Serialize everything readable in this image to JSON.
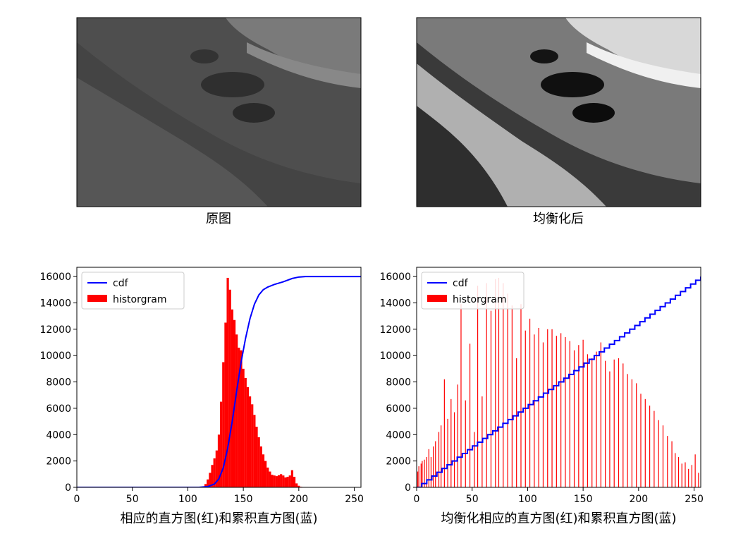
{
  "images": [
    {
      "caption": "原图"
    },
    {
      "caption": "均衡化后"
    }
  ],
  "chart_data": [
    {
      "type": "bar",
      "xlabel": "相应的直方图(红)和累积直方图(蓝)",
      "ylabel": "",
      "xlim": [
        0,
        256
      ],
      "ylim": [
        0,
        16700
      ],
      "xticks": [
        0,
        50,
        100,
        150,
        200,
        250
      ],
      "yticks": [
        0,
        2000,
        4000,
        6000,
        8000,
        10000,
        12000,
        14000,
        16000
      ],
      "grid": false,
      "legend_position": "top-left",
      "series": [
        {
          "name": "cdf",
          "kind": "line",
          "color": "#0000ff",
          "x": [
            0,
            110,
            118,
            124,
            128,
            132,
            136,
            140,
            144,
            148,
            152,
            156,
            160,
            164,
            168,
            172,
            178,
            186,
            194,
            200,
            206,
            256
          ],
          "y": [
            0,
            0,
            60,
            250,
            650,
            1500,
            3000,
            5000,
            7300,
            9500,
            11300,
            12800,
            13900,
            14600,
            15000,
            15200,
            15400,
            15600,
            15850,
            15960,
            16000,
            16000
          ]
        },
        {
          "name": "historgram",
          "kind": "bar",
          "color": "#ff0000",
          "x": [
            114,
            116,
            118,
            120,
            122,
            124,
            126,
            128,
            130,
            132,
            134,
            136,
            138,
            140,
            142,
            144,
            146,
            148,
            150,
            152,
            154,
            156,
            158,
            160,
            162,
            164,
            166,
            168,
            170,
            172,
            174,
            176,
            178,
            180,
            182,
            184,
            186,
            188,
            190,
            192,
            194,
            196,
            198,
            200,
            202,
            204,
            206
          ],
          "y": [
            80,
            250,
            600,
            1100,
            1700,
            2200,
            2800,
            4000,
            6500,
            9500,
            12500,
            15900,
            15000,
            13500,
            12700,
            11600,
            10600,
            10400,
            9000,
            8300,
            7600,
            6900,
            6300,
            5500,
            4600,
            3800,
            3100,
            2500,
            2000,
            1500,
            1200,
            950,
            900,
            850,
            920,
            1000,
            900,
            750,
            800,
            900,
            1300,
            800,
            300,
            120,
            40,
            15,
            5
          ]
        }
      ]
    },
    {
      "type": "bar",
      "xlabel": "均衡化相应的直方图(红)和累积直方图(蓝)",
      "ylabel": "",
      "xlim": [
        0,
        256
      ],
      "ylim": [
        0,
        16700
      ],
      "xticks": [
        0,
        50,
        100,
        150,
        200,
        250
      ],
      "yticks": [
        0,
        2000,
        4000,
        6000,
        8000,
        10000,
        12000,
        14000,
        16000
      ],
      "grid": false,
      "legend_position": "top-left",
      "series": [
        {
          "name": "cdf",
          "kind": "line",
          "color": "#0000ff",
          "x": [
            0,
            256
          ],
          "y": [
            0,
            16000
          ]
        },
        {
          "name": "historgram",
          "kind": "bar",
          "color": "#ff0000",
          "x": [
            1,
            2,
            4,
            5,
            7,
            9,
            11,
            13,
            15,
            17,
            20,
            22,
            25,
            28,
            31,
            34,
            37,
            40,
            44,
            48,
            52,
            55,
            59,
            63,
            67,
            71,
            74,
            78,
            82,
            86,
            90,
            94,
            98,
            102,
            106,
            110,
            114,
            118,
            122,
            126,
            130,
            134,
            138,
            142,
            146,
            150,
            154,
            158,
            162,
            166,
            170,
            174,
            178,
            182,
            186,
            190,
            194,
            198,
            202,
            206,
            210,
            214,
            218,
            222,
            226,
            230,
            233,
            236,
            239,
            242,
            245,
            248,
            251,
            254
          ],
          "y": [
            1200,
            1600,
            1800,
            2000,
            2100,
            2300,
            2900,
            2300,
            3100,
            3500,
            4200,
            4700,
            8200,
            5200,
            6700,
            5700,
            7800,
            13900,
            6600,
            10900,
            4200,
            15300,
            6900,
            15500,
            13400,
            15800,
            15900,
            15500,
            14700,
            13800,
            9800,
            13900,
            11900,
            12800,
            11600,
            12100,
            11000,
            12000,
            12000,
            11500,
            11700,
            11400,
            11100,
            10400,
            10800,
            11200,
            10100,
            9800,
            10300,
            11000,
            9600,
            8800,
            9700,
            9800,
            9400,
            8600,
            8200,
            7900,
            7100,
            6700,
            6200,
            5800,
            5100,
            4700,
            3900,
            3500,
            2600,
            2300,
            1800,
            1900,
            1400,
            1700,
            2500,
            1100
          ]
        }
      ]
    }
  ]
}
